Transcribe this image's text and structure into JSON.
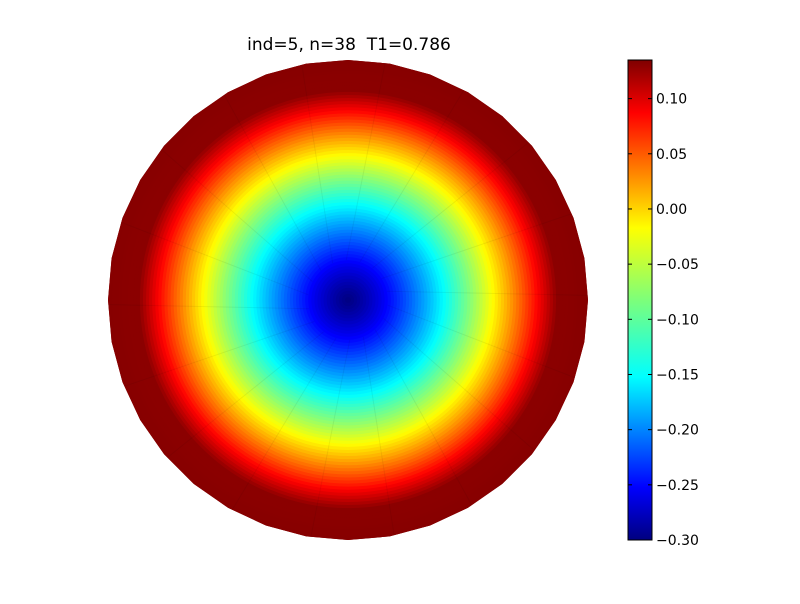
{
  "chart_data": {
    "type": "heatmap",
    "title": "ind=5, n=38  T1=0.786",
    "xlabel": "",
    "ylabel": "",
    "colormap": "jet",
    "field": "radially symmetric, minimum at disc centre, increasing toward the boundary",
    "value_range": [
      -0.3,
      0.135
    ],
    "center_value": -0.3,
    "edge_value": 0.13,
    "colorbar": {
      "ticks": [
        0.1,
        0.05,
        0.0,
        -0.05,
        -0.1,
        -0.15,
        -0.2,
        -0.25,
        -0.3
      ],
      "tick_labels": [
        "0.10",
        "0.05",
        "0.00",
        "−0.05",
        "−0.10",
        "−0.15",
        "−0.20",
        "−0.25",
        "−0.30"
      ],
      "min": -0.3,
      "max": 0.135
    }
  }
}
